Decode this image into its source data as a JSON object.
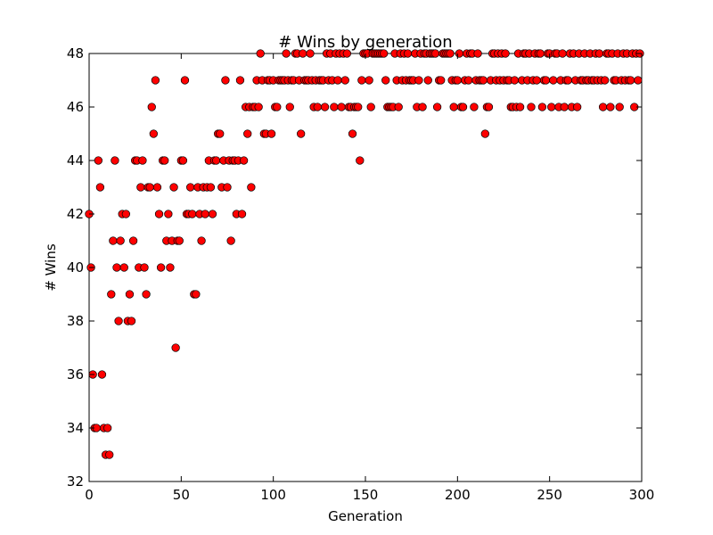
{
  "chart_data": {
    "type": "scatter",
    "title": "# Wins by generation",
    "xlabel": "Generation",
    "ylabel": "# Wins",
    "xlim": [
      0,
      300
    ],
    "ylim": [
      32,
      48
    ],
    "x_ticks": [
      0,
      50,
      100,
      150,
      200,
      250,
      300
    ],
    "y_ticks": [
      32,
      34,
      36,
      38,
      40,
      42,
      44,
      46,
      48
    ],
    "grid": false,
    "legend": "none",
    "marker_color": "#ff0000",
    "marker_edge_color": "#000000",
    "series": [
      {
        "points": [
          [
            0,
            42
          ],
          [
            1,
            40
          ],
          [
            2,
            36
          ],
          [
            3,
            34
          ],
          [
            4,
            34
          ],
          [
            5,
            44
          ],
          [
            6,
            43
          ],
          [
            7,
            36
          ],
          [
            8,
            34
          ],
          [
            9,
            33
          ],
          [
            10,
            34
          ],
          [
            11,
            33
          ],
          [
            12,
            39
          ],
          [
            13,
            41
          ],
          [
            14,
            44
          ],
          [
            15,
            40
          ],
          [
            16,
            38
          ],
          [
            17,
            41
          ],
          [
            18,
            42
          ],
          [
            19,
            40
          ],
          [
            20,
            42
          ],
          [
            21,
            38
          ],
          [
            22,
            39
          ],
          [
            23,
            38
          ],
          [
            24,
            41
          ],
          [
            25,
            44
          ],
          [
            26,
            44
          ],
          [
            27,
            40
          ],
          [
            28,
            43
          ],
          [
            29,
            44
          ],
          [
            30,
            40
          ],
          [
            31,
            39
          ],
          [
            32,
            43
          ],
          [
            33,
            43
          ],
          [
            34,
            46
          ],
          [
            35,
            45
          ],
          [
            36,
            47
          ],
          [
            37,
            43
          ],
          [
            38,
            42
          ],
          [
            39,
            40
          ],
          [
            40,
            44
          ],
          [
            41,
            44
          ],
          [
            42,
            41
          ],
          [
            43,
            42
          ],
          [
            44,
            40
          ],
          [
            45,
            41
          ],
          [
            46,
            43
          ],
          [
            47,
            37
          ],
          [
            48,
            41
          ],
          [
            49,
            41
          ],
          [
            50,
            44
          ],
          [
            51,
            44
          ],
          [
            52,
            47
          ],
          [
            53,
            42
          ],
          [
            54,
            42
          ],
          [
            55,
            43
          ],
          [
            56,
            42
          ],
          [
            57,
            39
          ],
          [
            58,
            39
          ],
          [
            59,
            43
          ],
          [
            60,
            42
          ],
          [
            61,
            41
          ],
          [
            62,
            43
          ],
          [
            63,
            42
          ],
          [
            64,
            43
          ],
          [
            65,
            44
          ],
          [
            66,
            43
          ],
          [
            67,
            42
          ],
          [
            68,
            44
          ],
          [
            69,
            44
          ],
          [
            70,
            45
          ],
          [
            71,
            45
          ],
          [
            72,
            43
          ],
          [
            73,
            44
          ],
          [
            74,
            47
          ],
          [
            75,
            43
          ],
          [
            76,
            44
          ],
          [
            77,
            41
          ],
          [
            78,
            44
          ],
          [
            79,
            44
          ],
          [
            80,
            42
          ],
          [
            81,
            44
          ],
          [
            82,
            47
          ],
          [
            83,
            42
          ],
          [
            84,
            44
          ],
          [
            85,
            46
          ],
          [
            86,
            45
          ],
          [
            87,
            46
          ],
          [
            88,
            43
          ],
          [
            89,
            46
          ],
          [
            90,
            46
          ],
          [
            91,
            47
          ],
          [
            92,
            46
          ],
          [
            93,
            48
          ],
          [
            94,
            47
          ],
          [
            95,
            45
          ],
          [
            96,
            45
          ],
          [
            97,
            47
          ],
          [
            98,
            47
          ],
          [
            99,
            45
          ],
          [
            100,
            47
          ],
          [
            101,
            46
          ],
          [
            102,
            46
          ],
          [
            103,
            47
          ],
          [
            104,
            47
          ],
          [
            105,
            47
          ],
          [
            106,
            47
          ],
          [
            107,
            48
          ],
          [
            108,
            47
          ],
          [
            109,
            46
          ],
          [
            110,
            47
          ],
          [
            111,
            47
          ],
          [
            112,
            48
          ],
          [
            113,
            48
          ],
          [
            114,
            47
          ],
          [
            115,
            45
          ],
          [
            116,
            48
          ],
          [
            117,
            47
          ],
          [
            118,
            47
          ],
          [
            119,
            47
          ],
          [
            120,
            48
          ],
          [
            121,
            47
          ],
          [
            122,
            46
          ],
          [
            123,
            47
          ],
          [
            124,
            46
          ],
          [
            125,
            47
          ],
          [
            126,
            47
          ],
          [
            127,
            47
          ],
          [
            128,
            46
          ],
          [
            129,
            48
          ],
          [
            130,
            47
          ],
          [
            131,
            48
          ],
          [
            132,
            47
          ],
          [
            133,
            46
          ],
          [
            134,
            48
          ],
          [
            135,
            47
          ],
          [
            136,
            48
          ],
          [
            137,
            46
          ],
          [
            138,
            48
          ],
          [
            139,
            47
          ],
          [
            140,
            48
          ],
          [
            141,
            46
          ],
          [
            142,
            46
          ],
          [
            143,
            45
          ],
          [
            144,
            46
          ],
          [
            145,
            46
          ],
          [
            146,
            46
          ],
          [
            147,
            44
          ],
          [
            148,
            47
          ],
          [
            149,
            48
          ],
          [
            150,
            48
          ],
          [
            151,
            48
          ],
          [
            152,
            47
          ],
          [
            153,
            46
          ],
          [
            154,
            48
          ],
          [
            155,
            48
          ],
          [
            156,
            48
          ],
          [
            157,
            48
          ],
          [
            158,
            48
          ],
          [
            159,
            48
          ],
          [
            160,
            48
          ],
          [
            161,
            47
          ],
          [
            162,
            46
          ],
          [
            163,
            46
          ],
          [
            164,
            46
          ],
          [
            165,
            46
          ],
          [
            166,
            48
          ],
          [
            167,
            47
          ],
          [
            168,
            46
          ],
          [
            169,
            48
          ],
          [
            170,
            47
          ],
          [
            171,
            48
          ],
          [
            172,
            47
          ],
          [
            173,
            48
          ],
          [
            174,
            47
          ],
          [
            175,
            47
          ],
          [
            176,
            47
          ],
          [
            177,
            48
          ],
          [
            178,
            46
          ],
          [
            179,
            47
          ],
          [
            180,
            48
          ],
          [
            181,
            46
          ],
          [
            182,
            48
          ],
          [
            183,
            48
          ],
          [
            184,
            47
          ],
          [
            185,
            48
          ],
          [
            186,
            48
          ],
          [
            187,
            48
          ],
          [
            188,
            48
          ],
          [
            189,
            46
          ],
          [
            190,
            47
          ],
          [
            191,
            47
          ],
          [
            192,
            48
          ],
          [
            193,
            48
          ],
          [
            194,
            48
          ],
          [
            195,
            48
          ],
          [
            196,
            48
          ],
          [
            197,
            47
          ],
          [
            198,
            46
          ],
          [
            199,
            47
          ],
          [
            200,
            47
          ],
          [
            201,
            48
          ],
          [
            202,
            46
          ],
          [
            203,
            46
          ],
          [
            204,
            47
          ],
          [
            205,
            48
          ],
          [
            206,
            47
          ],
          [
            207,
            48
          ],
          [
            208,
            48
          ],
          [
            209,
            46
          ],
          [
            210,
            47
          ],
          [
            211,
            48
          ],
          [
            212,
            47
          ],
          [
            213,
            47
          ],
          [
            214,
            47
          ],
          [
            215,
            45
          ],
          [
            216,
            46
          ],
          [
            217,
            46
          ],
          [
            218,
            47
          ],
          [
            219,
            48
          ],
          [
            220,
            48
          ],
          [
            221,
            47
          ],
          [
            222,
            48
          ],
          [
            223,
            47
          ],
          [
            224,
            48
          ],
          [
            225,
            47
          ],
          [
            226,
            48
          ],
          [
            227,
            47
          ],
          [
            228,
            47
          ],
          [
            229,
            46
          ],
          [
            230,
            46
          ],
          [
            231,
            47
          ],
          [
            232,
            46
          ],
          [
            233,
            48
          ],
          [
            234,
            46
          ],
          [
            235,
            47
          ],
          [
            236,
            48
          ],
          [
            237,
            48
          ],
          [
            238,
            47
          ],
          [
            239,
            48
          ],
          [
            240,
            46
          ],
          [
            241,
            47
          ],
          [
            242,
            48
          ],
          [
            243,
            47
          ],
          [
            244,
            48
          ],
          [
            245,
            48
          ],
          [
            246,
            46
          ],
          [
            247,
            47
          ],
          [
            248,
            47
          ],
          [
            249,
            48
          ],
          [
            250,
            48
          ],
          [
            251,
            46
          ],
          [
            252,
            47
          ],
          [
            253,
            48
          ],
          [
            254,
            48
          ],
          [
            255,
            46
          ],
          [
            256,
            47
          ],
          [
            257,
            48
          ],
          [
            258,
            46
          ],
          [
            259,
            47
          ],
          [
            260,
            47
          ],
          [
            261,
            48
          ],
          [
            262,
            46
          ],
          [
            263,
            48
          ],
          [
            264,
            47
          ],
          [
            265,
            46
          ],
          [
            266,
            48
          ],
          [
            267,
            47
          ],
          [
            268,
            47
          ],
          [
            269,
            48
          ],
          [
            270,
            47
          ],
          [
            271,
            47
          ],
          [
            272,
            48
          ],
          [
            273,
            47
          ],
          [
            274,
            47
          ],
          [
            275,
            48
          ],
          [
            276,
            47
          ],
          [
            277,
            48
          ],
          [
            278,
            47
          ],
          [
            279,
            46
          ],
          [
            280,
            47
          ],
          [
            281,
            48
          ],
          [
            282,
            48
          ],
          [
            283,
            46
          ],
          [
            284,
            48
          ],
          [
            285,
            47
          ],
          [
            286,
            47
          ],
          [
            287,
            48
          ],
          [
            288,
            46
          ],
          [
            289,
            47
          ],
          [
            290,
            48
          ],
          [
            291,
            47
          ],
          [
            292,
            48
          ],
          [
            293,
            47
          ],
          [
            294,
            47
          ],
          [
            295,
            48
          ],
          [
            296,
            46
          ],
          [
            297,
            48
          ],
          [
            298,
            47
          ],
          [
            299,
            48
          ]
        ]
      }
    ]
  }
}
